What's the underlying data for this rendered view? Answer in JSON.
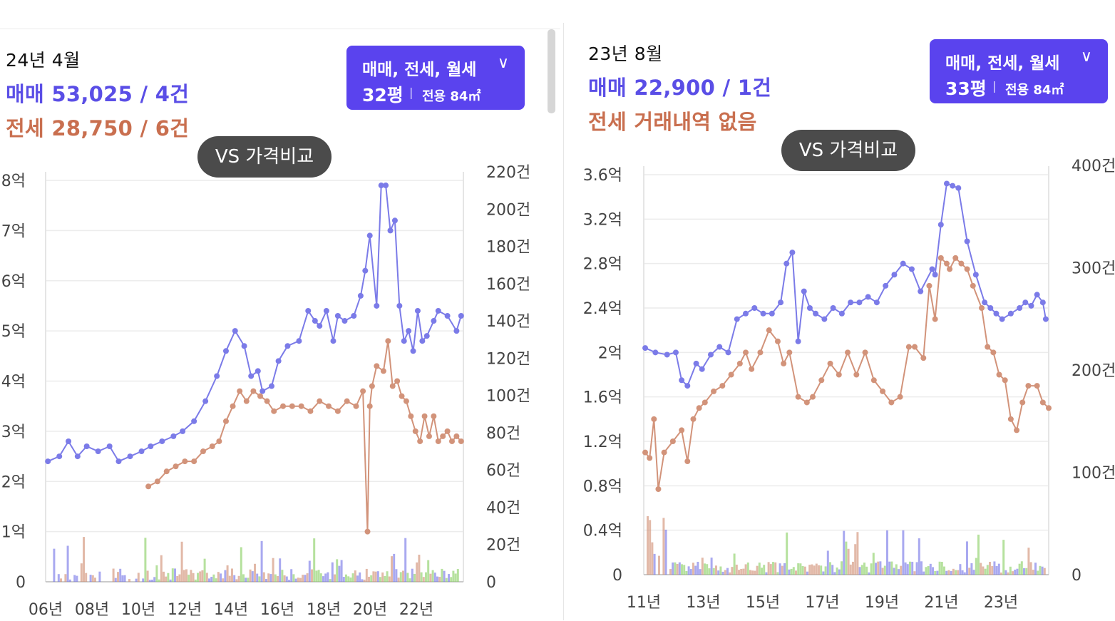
{
  "left": {
    "date": "24년 4월",
    "sale_text": "매매 53,025 / 4건",
    "jeonse_text": "전세 28,750 / 6건",
    "filter": {
      "types": "매매, 전세, 월세",
      "pyeong": "32평",
      "area": "전용 84㎡"
    },
    "vs_label": "VS 가격비교"
  },
  "right": {
    "date": "23년 8월",
    "sale_text": "매매 22,900 / 1건",
    "jeonse_text": "전세 거래내역 없음",
    "filter": {
      "types": "매매, 전세, 월세",
      "pyeong": "33평",
      "area": "전용 84㎡"
    },
    "vs_label": "VS 가격비교"
  },
  "colors": {
    "sale": "#7b7be8",
    "jeonse": "#d2937a",
    "monthly": "#8fd16a",
    "accent": "#5a43ee",
    "sale_text": "#5a4ee6",
    "jeonse_text": "#c96f4f"
  },
  "icons": {
    "dropdown": "chevron-down-icon"
  },
  "chart_data": [
    {
      "type": "line",
      "y_left_ticks": [
        "8억",
        "7억",
        "6억",
        "5억",
        "4억",
        "3억",
        "2억",
        "1억",
        "0"
      ],
      "y_right_ticks": [
        "220건",
        "200건",
        "180건",
        "160건",
        "140건",
        "120건",
        "100건",
        "80건",
        "60건",
        "40건",
        "20건",
        "0"
      ],
      "x_ticks": [
        "06년",
        "08년",
        "10년",
        "12년",
        "14년",
        "16년",
        "18년",
        "20년",
        "22년"
      ],
      "ylim_left": [
        0,
        8
      ],
      "ylim_right": [
        0,
        220
      ],
      "xlim": [
        2006,
        2024.3
      ],
      "grid": true,
      "series": [
        {
          "key": "sale",
          "x": [
            2006.1,
            2006.6,
            2007,
            2007.4,
            2007.8,
            2008.3,
            2008.8,
            2009.2,
            2009.7,
            2010.2,
            2010.6,
            2011.1,
            2011.6,
            2012,
            2012.5,
            2013,
            2013.5,
            2013.9,
            2014.3,
            2014.7,
            2015,
            2015.3,
            2015.5,
            2015.9,
            2016.2,
            2016.6,
            2017.1,
            2017.5,
            2017.8,
            2018,
            2018.3,
            2018.6,
            2018.8,
            2019.1,
            2019.5,
            2019.8,
            2020,
            2020.2,
            2020.5,
            2020.7,
            2020.9,
            2021.1,
            2021.3,
            2021.5,
            2021.7,
            2021.9,
            2022.1,
            2022.3,
            2022.5,
            2022.7,
            2023,
            2023.2,
            2023.6,
            2024,
            2024.2
          ],
          "y": [
            2.4,
            2.5,
            2.8,
            2.5,
            2.7,
            2.6,
            2.7,
            2.4,
            2.5,
            2.6,
            2.7,
            2.8,
            2.9,
            3,
            3.2,
            3.6,
            4.1,
            4.6,
            5,
            4.7,
            4.1,
            4.2,
            3.8,
            3.9,
            4.4,
            4.7,
            4.8,
            5.4,
            5.2,
            5.1,
            5.4,
            4.8,
            5.3,
            5.2,
            5.3,
            5.7,
            6.2,
            6.9,
            5.5,
            7.9,
            7.9,
            7.0,
            7.2,
            5.5,
            4.8,
            5.0,
            4.6,
            5.4,
            4.8,
            4.9,
            5.2,
            5.4,
            5.3,
            5.0,
            5.3
          ]
        },
        {
          "key": "jeonse",
          "x": [
            2010.5,
            2010.9,
            2011.3,
            2011.7,
            2012.1,
            2012.5,
            2012.9,
            2013.3,
            2013.6,
            2013.9,
            2014.2,
            2014.5,
            2014.8,
            2015.1,
            2015.4,
            2015.7,
            2016,
            2016.4,
            2016.8,
            2017.2,
            2017.6,
            2018,
            2018.4,
            2018.8,
            2019.2,
            2019.6,
            2019.9,
            2020.1,
            2020.2,
            2020.3,
            2020.5,
            2020.8,
            2021,
            2021.2,
            2021.4,
            2021.6,
            2021.8,
            2022,
            2022.2,
            2022.4,
            2022.6,
            2022.8,
            2023,
            2023.2,
            2023.4,
            2023.6,
            2023.8,
            2024,
            2024.2
          ],
          "y": [
            1.9,
            2.0,
            2.2,
            2.3,
            2.4,
            2.4,
            2.6,
            2.7,
            2.8,
            3.2,
            3.5,
            3.8,
            3.6,
            3.8,
            3.7,
            3.6,
            3.4,
            3.5,
            3.5,
            3.5,
            3.4,
            3.6,
            3.5,
            3.4,
            3.6,
            3.5,
            3.8,
            1.0,
            3.5,
            3.9,
            4.3,
            4.2,
            4.8,
            3.9,
            4.0,
            3.7,
            3.6,
            3.3,
            3.0,
            2.8,
            3.3,
            2.9,
            3.3,
            2.8,
            2.9,
            3.0,
            2.8,
            2.9,
            2.8
          ]
        }
      ],
      "volume_series_keys": [
        "sale",
        "jeonse",
        "monthly"
      ]
    },
    {
      "type": "line",
      "y_left_ticks": [
        "3.6억",
        "3.2억",
        "2.8억",
        "2.4억",
        "2억",
        "1.6억",
        "1.2억",
        "0.8억",
        "0.4억",
        "0"
      ],
      "y_right_ticks": [
        "400건",
        "300건",
        "200건",
        "100건",
        "0"
      ],
      "x_ticks": [
        "11년",
        "13년",
        "15년",
        "17년",
        "19년",
        "21년",
        "23년"
      ],
      "ylim_left": [
        0,
        3.6
      ],
      "ylim_right": [
        0,
        400
      ],
      "xlim": [
        2011,
        2024.9
      ],
      "grid": true,
      "series": [
        {
          "key": "sale",
          "x": [
            2011.05,
            2011.4,
            2011.8,
            2012.1,
            2012.3,
            2012.5,
            2012.8,
            2013,
            2013.3,
            2013.6,
            2013.9,
            2014.2,
            2014.5,
            2014.8,
            2015.1,
            2015.4,
            2015.7,
            2015.9,
            2016.1,
            2016.3,
            2016.5,
            2016.7,
            2016.9,
            2017.2,
            2017.5,
            2017.8,
            2018.1,
            2018.4,
            2018.7,
            2019,
            2019.3,
            2019.6,
            2019.9,
            2020.2,
            2020.5,
            2020.9,
            2021,
            2021.2,
            2021.4,
            2021.6,
            2021.8,
            2022.1,
            2022.4,
            2022.7,
            2022.9,
            2023.1,
            2023.3,
            2023.6,
            2023.9,
            2024.1,
            2024.3,
            2024.5,
            2024.7,
            2024.8
          ],
          "y": [
            2.04,
            2.0,
            1.98,
            2.0,
            1.75,
            1.7,
            1.9,
            1.85,
            1.98,
            2.05,
            2.0,
            2.3,
            2.35,
            2.4,
            2.35,
            2.35,
            2.45,
            2.8,
            2.9,
            2.1,
            2.55,
            2.4,
            2.35,
            2.3,
            2.4,
            2.35,
            2.45,
            2.45,
            2.5,
            2.45,
            2.6,
            2.7,
            2.8,
            2.75,
            2.55,
            2.75,
            2.7,
            3.15,
            3.52,
            3.5,
            3.48,
            3.0,
            2.7,
            2.45,
            2.4,
            2.35,
            2.3,
            2.35,
            2.4,
            2.45,
            2.42,
            2.52,
            2.45,
            2.3
          ]
        },
        {
          "key": "jeonse",
          "x": [
            2011.05,
            2011.2,
            2011.35,
            2011.5,
            2011.7,
            2012,
            2012.3,
            2012.5,
            2012.7,
            2012.9,
            2013.1,
            2013.4,
            2013.7,
            2014,
            2014.3,
            2014.5,
            2014.7,
            2015,
            2015.3,
            2015.6,
            2015.8,
            2016,
            2016.3,
            2016.6,
            2016.8,
            2017.1,
            2017.4,
            2017.7,
            2018,
            2018.3,
            2018.6,
            2018.9,
            2019.2,
            2019.5,
            2019.8,
            2020.1,
            2020.3,
            2020.6,
            2020.8,
            2021,
            2021.2,
            2021.4,
            2021.5,
            2021.7,
            2021.9,
            2022.1,
            2022.3,
            2022.6,
            2022.8,
            2023,
            2023.2,
            2023.4,
            2023.6,
            2023.8,
            2024,
            2024.2,
            2024.5,
            2024.7,
            2024.9
          ],
          "y": [
            1.1,
            1.05,
            1.4,
            0.77,
            1.1,
            1.2,
            1.3,
            1.02,
            1.4,
            1.5,
            1.55,
            1.65,
            1.7,
            1.8,
            1.9,
            2.0,
            1.85,
            2.0,
            2.2,
            2.1,
            1.9,
            2.0,
            1.6,
            1.55,
            1.6,
            1.75,
            1.9,
            1.8,
            2.0,
            1.8,
            2.0,
            1.75,
            1.65,
            1.55,
            1.6,
            2.05,
            2.05,
            1.95,
            2.6,
            2.3,
            2.85,
            2.8,
            2.75,
            2.85,
            2.8,
            2.75,
            2.6,
            2.4,
            2.05,
            2.0,
            1.8,
            1.75,
            1.4,
            1.3,
            1.55,
            1.7,
            1.7,
            1.55,
            1.5
          ]
        }
      ],
      "volume_series_keys": [
        "sale",
        "jeonse",
        "monthly"
      ]
    }
  ]
}
